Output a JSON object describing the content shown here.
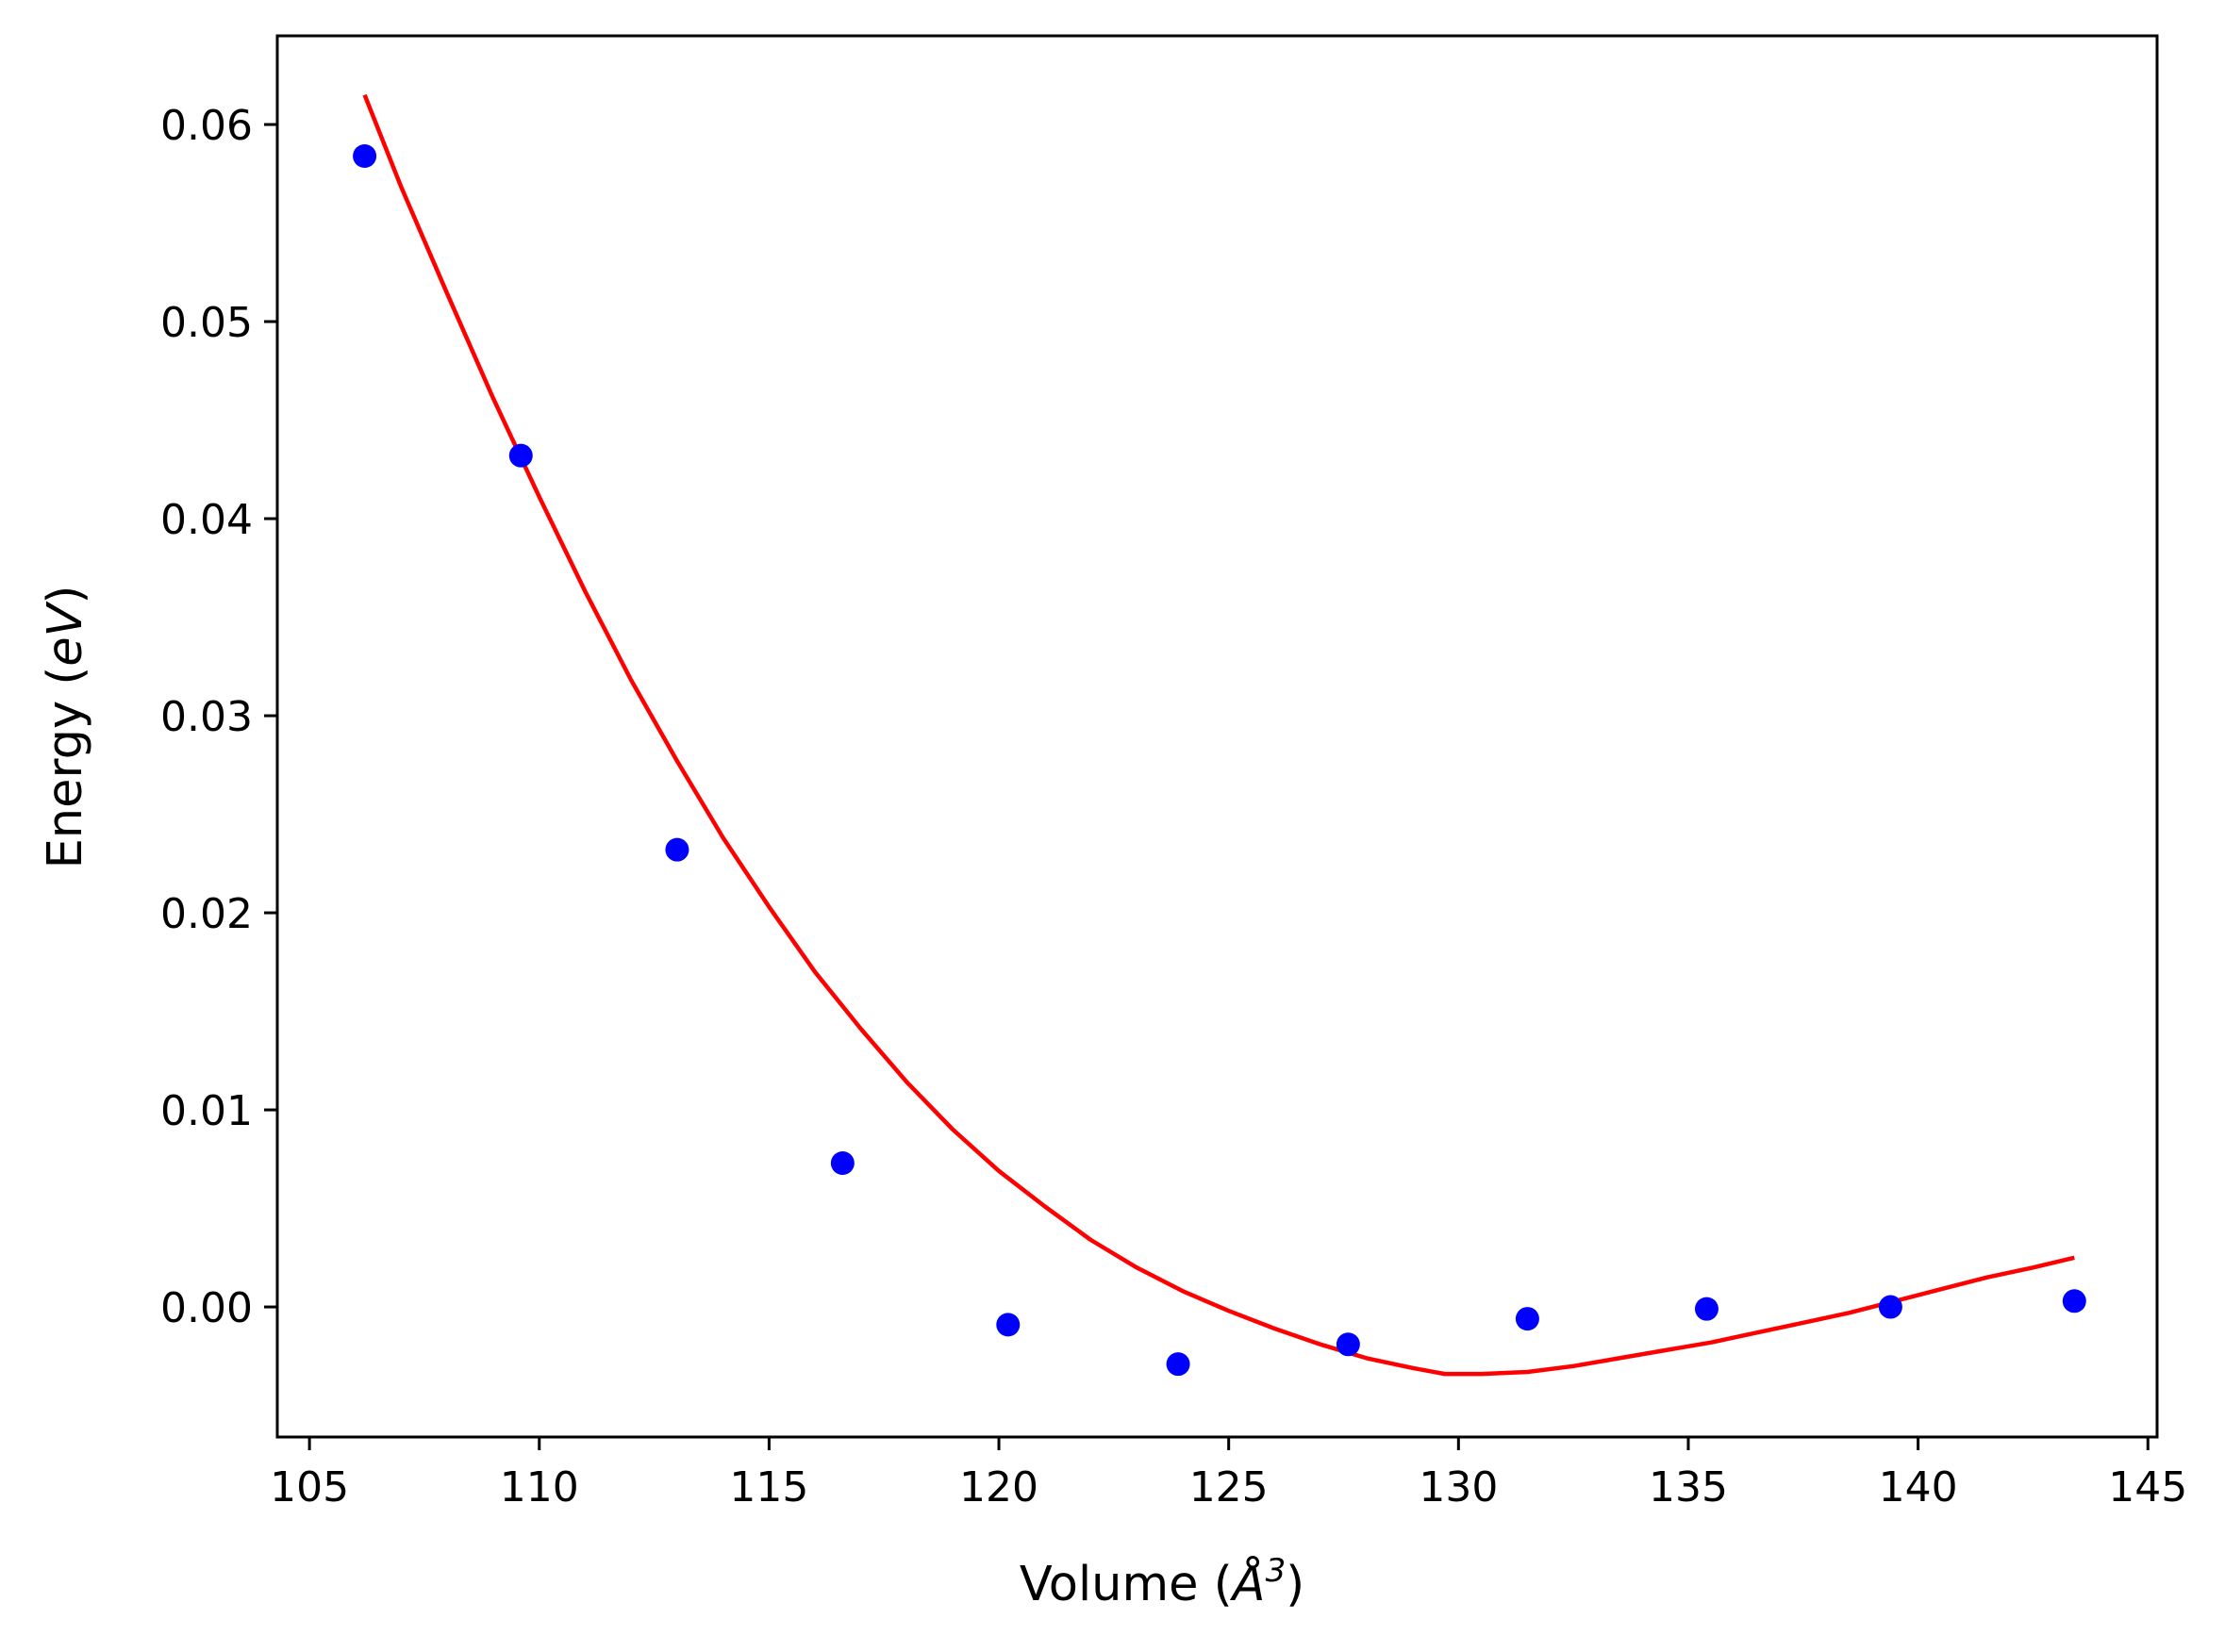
{
  "chart_data": {
    "type": "scatter",
    "title": "",
    "xlabel_parts": {
      "prefix": "Volume (",
      "unit": "Å",
      "exponent": "3",
      "suffix": ")"
    },
    "ylabel_parts": {
      "prefix": "Energy (",
      "unit": "eV",
      "suffix": ")"
    },
    "xlim": [
      104.3,
      145.2
    ],
    "ylim": [
      -0.0066,
      0.0645
    ],
    "grid": false,
    "legend": "none",
    "x_ticks": [
      {
        "value": 105,
        "label": "105"
      },
      {
        "value": 110,
        "label": "110"
      },
      {
        "value": 115,
        "label": "115"
      },
      {
        "value": 120,
        "label": "120"
      },
      {
        "value": 125,
        "label": "125"
      },
      {
        "value": 130,
        "label": "130"
      },
      {
        "value": 135,
        "label": "135"
      },
      {
        "value": 140,
        "label": "140"
      },
      {
        "value": 145,
        "label": "145"
      }
    ],
    "y_ticks": [
      {
        "value": 0.0,
        "label": "0.00"
      },
      {
        "value": 0.01,
        "label": "0.01"
      },
      {
        "value": 0.02,
        "label": "0.02"
      },
      {
        "value": 0.03,
        "label": "0.03"
      },
      {
        "value": 0.04,
        "label": "0.04"
      },
      {
        "value": 0.05,
        "label": "0.05"
      },
      {
        "value": 0.06,
        "label": "0.06"
      }
    ],
    "series": [
      {
        "kind": "scatter",
        "color": "#0000ff",
        "points": [
          [
            106.2,
            0.0584
          ],
          [
            109.6,
            0.0432
          ],
          [
            113.0,
            0.0232
          ],
          [
            116.6,
            0.0073
          ],
          [
            120.2,
            -0.0009
          ],
          [
            123.9,
            -0.0029
          ],
          [
            127.6,
            -0.0019
          ],
          [
            131.5,
            -0.0006
          ],
          [
            135.4,
            -0.0001
          ],
          [
            139.4,
            0.0
          ],
          [
            143.4,
            0.0003
          ]
        ]
      },
      {
        "kind": "line",
        "color": "#ff0000",
        "points": [
          [
            106.2,
            0.0615
          ],
          [
            107.0,
            0.0568
          ],
          [
            108.0,
            0.0514
          ],
          [
            109.0,
            0.0461
          ],
          [
            110.0,
            0.0411
          ],
          [
            111.0,
            0.0363
          ],
          [
            112.0,
            0.0318
          ],
          [
            113.0,
            0.0277
          ],
          [
            114.0,
            0.0238
          ],
          [
            115.0,
            0.0203
          ],
          [
            116.0,
            0.017
          ],
          [
            117.0,
            0.0141
          ],
          [
            118.0,
            0.0114
          ],
          [
            119.0,
            0.009
          ],
          [
            120.0,
            0.0069
          ],
          [
            121.0,
            0.0051
          ],
          [
            122.0,
            0.0034
          ],
          [
            123.0,
            0.002
          ],
          [
            124.0,
            0.0008
          ],
          [
            125.0,
            -0.0002
          ],
          [
            126.0,
            -0.0011
          ],
          [
            127.0,
            -0.0019
          ],
          [
            128.0,
            -0.0026
          ],
          [
            129.0,
            -0.0031
          ],
          [
            129.7,
            -0.0034
          ],
          [
            130.5,
            -0.0034
          ],
          [
            131.5,
            -0.0033
          ],
          [
            132.5,
            -0.003
          ],
          [
            133.5,
            -0.0026
          ],
          [
            134.5,
            -0.0022
          ],
          [
            135.5,
            -0.0018
          ],
          [
            136.5,
            -0.0013
          ],
          [
            137.5,
            -0.0008
          ],
          [
            138.5,
            -0.0003
          ],
          [
            139.5,
            0.0003
          ],
          [
            140.5,
            0.0009
          ],
          [
            141.5,
            0.0015
          ],
          [
            142.5,
            0.002
          ],
          [
            143.4,
            0.0025
          ]
        ]
      }
    ]
  }
}
